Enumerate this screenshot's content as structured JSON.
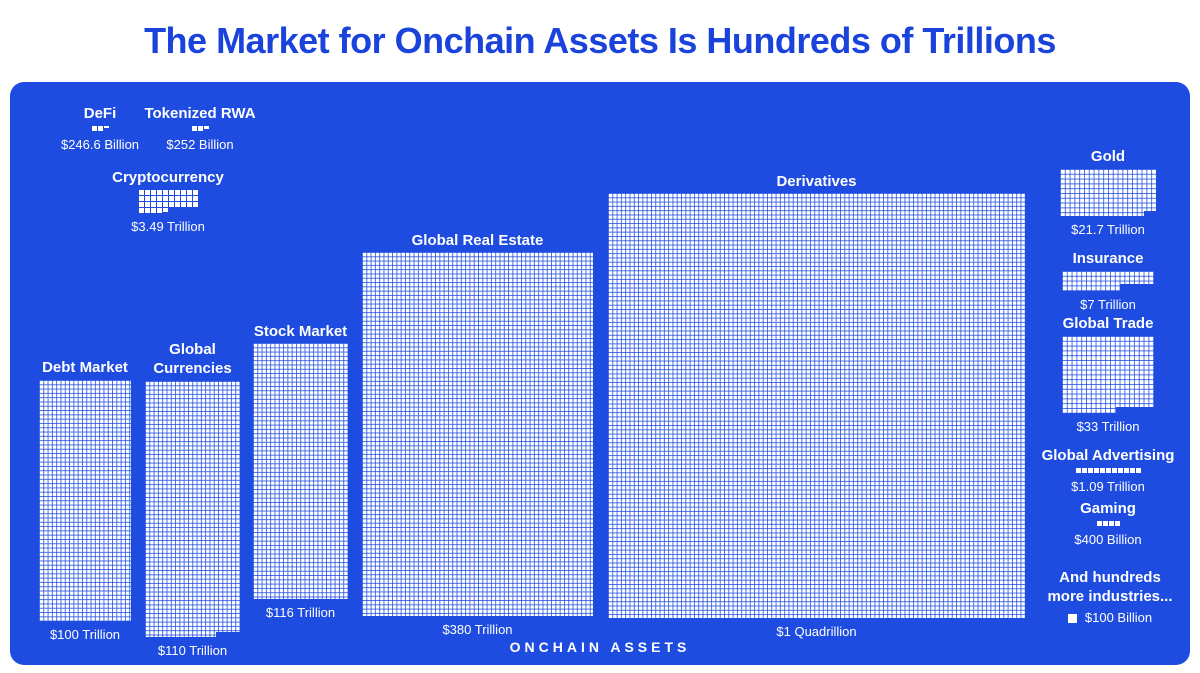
{
  "title": "The Market for Onchain Assets Is Hundreds of Trillions",
  "footer_label": "ONCHAIN ASSETS",
  "note": "And hundreds more industries...",
  "legend": {
    "square_icon": "white-square",
    "label": "$100 Billion"
  },
  "colors": {
    "panel_blue": "#1E4CE0",
    "title_blue": "#1A43DC",
    "square_white": "#FFFFFF"
  },
  "chart_data": {
    "type": "waffle",
    "title": "The Market for Onchain Assets Is Hundreds of Trillions",
    "unit_per_square": "$100 Billion",
    "group_label": "ONCHAIN ASSETS",
    "items": [
      {
        "label": "DeFi",
        "value": "$246.6 Billion",
        "value_billions": 246.6,
        "squares": 2.466
      },
      {
        "label": "Tokenized RWA",
        "value": "$252 Billion",
        "value_billions": 252,
        "squares": 2.52
      },
      {
        "label": "Cryptocurrency",
        "value": "$3.49 Trillion",
        "value_billions": 3490,
        "squares": 34.9
      },
      {
        "label": "Debt Market",
        "value": "$100 Trillion",
        "value_billions": 100000,
        "squares": 1000
      },
      {
        "label": "Global Currencies",
        "value": "$110 Trillion",
        "value_billions": 110000,
        "squares": 1100
      },
      {
        "label": "Stock Market",
        "value": "$116 Trillion",
        "value_billions": 116000,
        "squares": 1160
      },
      {
        "label": "Global Real Estate",
        "value": "$380 Trillion",
        "value_billions": 380000,
        "squares": 3800
      },
      {
        "label": "Derivatives",
        "value": "$1 Quadrillion",
        "value_billions": 1000000,
        "squares": 10000
      },
      {
        "label": "Gold",
        "value": "$21.7 Trillion",
        "value_billions": 21700,
        "squares": 217
      },
      {
        "label": "Insurance",
        "value": "$7 Trillion",
        "value_billions": 7000,
        "squares": 70
      },
      {
        "label": "Global Trade",
        "value": "$33 Trillion",
        "value_billions": 33000,
        "squares": 330
      },
      {
        "label": "Global Advertising",
        "value": "$1.09 Trillion",
        "value_billions": 1090,
        "squares": 10.9
      },
      {
        "label": "Gaming",
        "value": "$400 Billion",
        "value_billions": 400,
        "squares": 4
      }
    ]
  }
}
